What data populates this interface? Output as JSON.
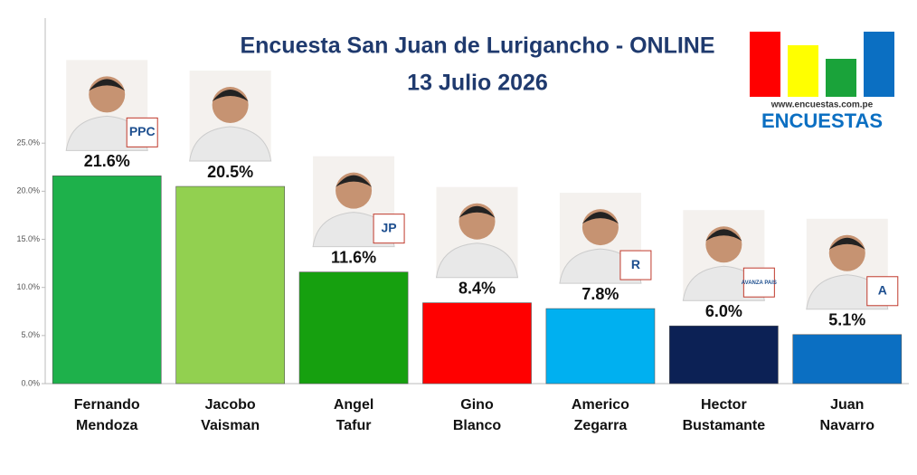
{
  "chart_data": {
    "type": "bar",
    "title": "Encuesta San Juan de Lurigancho - ONLINE",
    "subtitle": "13 Julio 2026",
    "categories": [
      [
        "Fernando",
        "Mendoza"
      ],
      [
        "Jacobo",
        "Vaisman"
      ],
      [
        "Angel",
        "Tafur"
      ],
      [
        "Gino",
        "Blanco"
      ],
      [
        "Americo",
        "Zegarra"
      ],
      [
        "Hector",
        "Bustamante"
      ],
      [
        "Juan",
        "Navarro"
      ]
    ],
    "values": [
      21.6,
      20.5,
      11.6,
      8.4,
      7.8,
      6.0,
      5.1
    ],
    "value_labels": [
      "21.6%",
      "20.5%",
      "11.6%",
      "8.4%",
      "7.8%",
      "6.0%",
      "5.1%"
    ],
    "colors": [
      "#1eb14b",
      "#92d050",
      "#16a00f",
      "#ff0000",
      "#00b0f0",
      "#0c2155",
      "#0b6fc2"
    ],
    "ylim": [
      0,
      38
    ],
    "yticks": [
      {
        "value": 0,
        "label": "0.0%"
      },
      {
        "value": 5,
        "label": "5.0%"
      },
      {
        "value": 10,
        "label": "10.0%"
      },
      {
        "value": 15,
        "label": "15.0%"
      },
      {
        "value": 20,
        "label": "20.0%"
      },
      {
        "value": 25,
        "label": "25.0%"
      }
    ],
    "grid": false,
    "party_logos": [
      "PPC",
      "JP",
      "R",
      "AVANZA PAIS",
      "A"
    ]
  },
  "logo": {
    "url": "www.encuestas.com.pe",
    "name": "ENCUESTAS"
  }
}
